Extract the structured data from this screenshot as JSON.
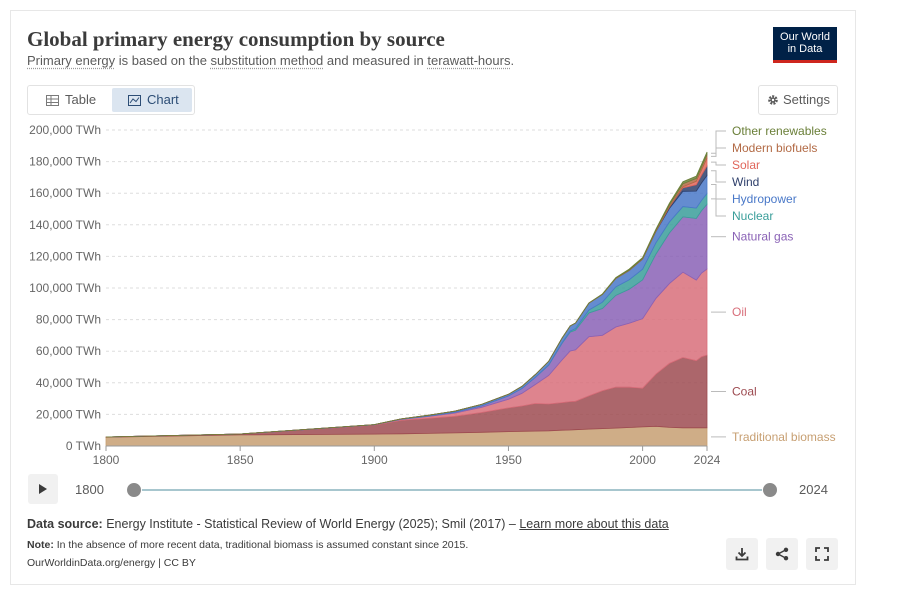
{
  "header": {
    "title": "Global primary energy consumption by source",
    "subtitle_parts": [
      "Primary energy",
      " is based on the ",
      "substitution method",
      " and measured in ",
      "terawatt-hours",
      "."
    ],
    "logo_line1": "Our World",
    "logo_line2": "in Data"
  },
  "tabs": [
    {
      "label": "Table",
      "icon": "table-icon",
      "active": false
    },
    {
      "label": "Chart",
      "icon": "line-chart-icon",
      "active": true
    }
  ],
  "settings_label": "Settings",
  "colors": {
    "traditional_biomass": "#c79f72",
    "coal": "#9d4b51",
    "oil": "#d86e7a",
    "natural_gas": "#8a62b6",
    "nuclear": "#3a9e9a",
    "hydropower": "#4978c8",
    "wind": "#2e3f6b",
    "solar": "#e0655a",
    "modern_biofuels": "#b26a45",
    "other_renewables": "#6a7f38"
  },
  "chart_data": {
    "type": "area",
    "stacked": true,
    "ylim": [
      0,
      200000
    ],
    "xlim": [
      1800,
      2024
    ],
    "y_ticks": [
      "0 TWh",
      "20,000 TWh",
      "40,000 TWh",
      "60,000 TWh",
      "80,000 TWh",
      "100,000 TWh",
      "120,000 TWh",
      "140,000 TWh",
      "160,000 TWh",
      "180,000 TWh",
      "200,000 TWh"
    ],
    "y_tick_values": [
      0,
      20000,
      40000,
      60000,
      80000,
      100000,
      120000,
      140000,
      160000,
      180000,
      200000
    ],
    "x_ticks": [
      "1800",
      "1850",
      "1900",
      "1950",
      "2000",
      "2024"
    ],
    "x_tick_values": [
      1800,
      1850,
      1900,
      1950,
      2000,
      2024
    ],
    "grid": true,
    "legend": "right, labels at series end",
    "x": [
      1800,
      1850,
      1900,
      1910,
      1920,
      1930,
      1940,
      1950,
      1955,
      1960,
      1965,
      1970,
      1973,
      1975,
      1980,
      1985,
      1990,
      1995,
      2000,
      2005,
      2010,
      2015,
      2020,
      2022,
      2024
    ],
    "series": [
      {
        "name": "Traditional biomass",
        "key": "traditional_biomass",
        "values": [
          5600,
          7000,
          7500,
          7700,
          8000,
          8300,
          8700,
          9100,
          9300,
          9400,
          9600,
          10000,
          10100,
          10300,
          10700,
          11000,
          11300,
          11700,
          12100,
          12500,
          11800,
          11500,
          11500,
          11500,
          11500
        ]
      },
      {
        "name": "Coal",
        "key": "coal",
        "values": [
          100,
          600,
          5700,
          8500,
          9500,
          10500,
          12500,
          15000,
          16000,
          17500,
          17000,
          17500,
          18000,
          18000,
          21000,
          24000,
          26000,
          25500,
          24500,
          33000,
          40500,
          44500,
          42500,
          45000,
          46000
        ]
      },
      {
        "name": "Oil",
        "key": "oil",
        "values": [
          0,
          0,
          200,
          600,
          1200,
          2000,
          3300,
          5500,
          8000,
          12000,
          18000,
          27000,
          32000,
          32500,
          37500,
          35000,
          38000,
          40500,
          44000,
          48000,
          50500,
          54000,
          51000,
          53000,
          54500
        ]
      },
      {
        "name": "Natural gas",
        "key": "natural_gas",
        "values": [
          0,
          0,
          60,
          150,
          250,
          600,
          900,
          2100,
          3000,
          4500,
          6500,
          10500,
          12000,
          12500,
          15000,
          17000,
          20000,
          21500,
          24500,
          28000,
          32000,
          35000,
          39000,
          39500,
          41000
        ]
      },
      {
        "name": "Nuclear",
        "key": "nuclear",
        "values": [
          0,
          0,
          0,
          0,
          0,
          0,
          0,
          0,
          0,
          0,
          200,
          300,
          600,
          1000,
          1900,
          4000,
          5400,
          6000,
          6800,
          7200,
          7000,
          6500,
          6600,
          6500,
          6800
        ]
      },
      {
        "name": "Hydropower",
        "key": "hydropower",
        "values": [
          0,
          0,
          100,
          200,
          450,
          650,
          900,
          1050,
          1400,
          1800,
          2300,
          3000,
          3300,
          3500,
          4300,
          4900,
          5300,
          5900,
          6400,
          7200,
          8500,
          9700,
          10700,
          11000,
          11400
        ]
      },
      {
        "name": "Wind",
        "key": "wind",
        "values": [
          0,
          0,
          0,
          0,
          0,
          0,
          0,
          0,
          0,
          0,
          0,
          0,
          0,
          0,
          0,
          0,
          10,
          20,
          80,
          250,
          900,
          2200,
          4000,
          5000,
          6000
        ]
      },
      {
        "name": "Solar",
        "key": "solar",
        "values": [
          0,
          0,
          0,
          0,
          0,
          0,
          0,
          0,
          0,
          0,
          0,
          0,
          0,
          0,
          0,
          0,
          0,
          0,
          2,
          10,
          80,
          650,
          2200,
          3300,
          5000
        ]
      },
      {
        "name": "Modern biofuels",
        "key": "modern_biofuels",
        "values": [
          0,
          0,
          0,
          0,
          0,
          0,
          0,
          0,
          0,
          0,
          0,
          0,
          0,
          0,
          40,
          100,
          200,
          300,
          300,
          500,
          1400,
          1900,
          1800,
          2000,
          2200
        ]
      },
      {
        "name": "Other renewables",
        "key": "other_renewables",
        "values": [
          0,
          0,
          0,
          0,
          0,
          0,
          0,
          0,
          0,
          0,
          0,
          30,
          40,
          60,
          120,
          260,
          420,
          520,
          610,
          740,
          1000,
          1300,
          1500,
          1600,
          1700
        ]
      }
    ]
  },
  "timeline": {
    "start": "1800",
    "end": "2024",
    "start_fraction": 0,
    "end_fraction": 1
  },
  "footer": {
    "source_label": "Data source:",
    "source_text": " Energy Institute - Statistical Review of World Energy (2025); Smil (2017) – ",
    "source_link": "Learn more about this data",
    "note_label": "Note:",
    "note_text": " In the absence of more recent data, traditional biomass is assumed constant since 2015.",
    "url_text": "OurWorldinData.org/energy | CC BY"
  },
  "actions": [
    {
      "name": "download-button",
      "icon": "download-icon"
    },
    {
      "name": "share-button",
      "icon": "share-icon"
    },
    {
      "name": "fullscreen-button",
      "icon": "fullscreen-icon"
    }
  ]
}
